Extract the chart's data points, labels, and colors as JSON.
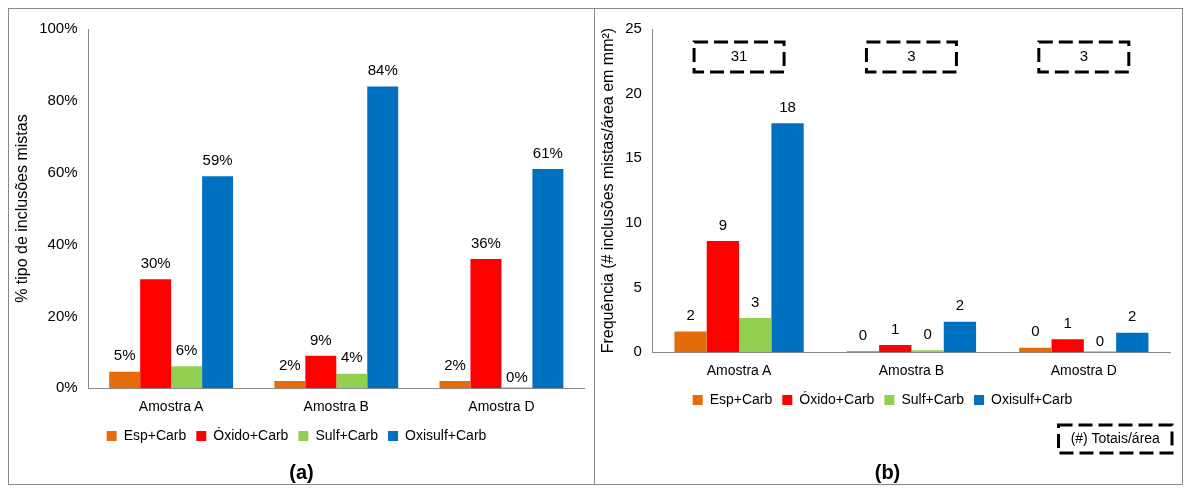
{
  "chart_data": [
    {
      "type": "bar",
      "title": "(a)",
      "ylabel": "% tipo de inclusões mistas",
      "categories": [
        "Amostra A",
        "Amostra B",
        "Amostra D"
      ],
      "ylim": [
        0,
        100
      ],
      "yticks": [
        {
          "value": 0,
          "label": "0%"
        },
        {
          "value": 20,
          "label": "20%"
        },
        {
          "value": 40,
          "label": "40%"
        },
        {
          "value": 60,
          "label": "60%"
        },
        {
          "value": 80,
          "label": "80%"
        },
        {
          "value": 100,
          "label": "100%"
        }
      ],
      "legend": "bottom",
      "series": [
        {
          "name": "Esp+Carb",
          "color": "#e46c0a",
          "values": [
            4.6,
            2,
            2
          ],
          "value_labels": [
            "5%",
            "2%",
            "2%"
          ]
        },
        {
          "name": "Óxido+Carb",
          "color": "#ff0000",
          "values": [
            30.3,
            9,
            36
          ],
          "value_labels": [
            "30%",
            "9%",
            "36%"
          ]
        },
        {
          "name": "Sulf+Carb",
          "color": "#92d050",
          "values": [
            6.1,
            4,
            0
          ],
          "value_labels": [
            "6%",
            "4%",
            "0%"
          ]
        },
        {
          "name": "Oxisulf+Carb",
          "color": "#0070c0",
          "values": [
            59,
            84,
            61
          ],
          "value_labels": [
            "59%",
            "84%",
            "61%"
          ]
        }
      ]
    },
    {
      "type": "bar",
      "title": "(b)",
      "ylabel": "Frequência (# inclusões mistas/área em mm²)",
      "categories": [
        "Amostra A",
        "Amostra B",
        "Amostra D"
      ],
      "ylim": [
        0,
        25
      ],
      "yticks": [
        0,
        5,
        10,
        15,
        20,
        25
      ],
      "legend": "bottom",
      "annotations": [
        "31",
        "3",
        "3",
        "(#) Totais/área"
      ],
      "series": [
        {
          "name": "Esp+Carb",
          "color": "#e46c0a",
          "values": [
            1.6,
            0.05,
            0.35
          ],
          "value_labels": [
            "2",
            "0",
            "0"
          ]
        },
        {
          "name": "Óxido+Carb",
          "color": "#ff0000",
          "values": [
            8.6,
            0.55,
            1.0
          ],
          "value_labels": [
            "9",
            "1",
            "1"
          ]
        },
        {
          "name": "Sulf+Carb",
          "color": "#92d050",
          "values": [
            2.65,
            0.15,
            0
          ],
          "value_labels": [
            "3",
            "0",
            "0"
          ]
        },
        {
          "name": "Oxisulf+Carb",
          "color": "#0070c0",
          "values": [
            17.7,
            2.35,
            1.5
          ],
          "value_labels": [
            "18",
            "2",
            "2"
          ]
        }
      ]
    }
  ]
}
